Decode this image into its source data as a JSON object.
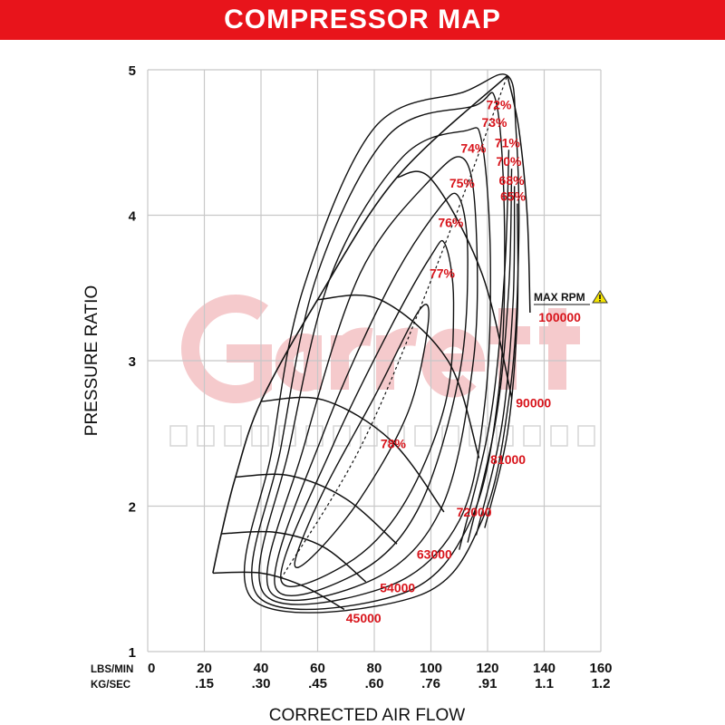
{
  "chart_data": {
    "type": "line",
    "title": "COMPRESSOR MAP",
    "xlabel": "CORRECTED AIR FLOW",
    "ylabel": "PRESSURE RATIO",
    "x_unit_labels": [
      "LBS/MIN",
      "KG/SEC"
    ],
    "xlim": [
      0,
      160
    ],
    "ylim": [
      1,
      5
    ],
    "grid": true,
    "x_ticks": [
      0,
      20,
      40,
      60,
      80,
      100,
      120,
      140,
      160
    ],
    "x_ticks_kgsec": [
      "",
      ".15",
      ".30",
      ".45",
      ".60",
      ".76",
      ".91",
      "1.1",
      "1.2"
    ],
    "y_ticks": [
      1,
      2,
      3,
      4,
      5
    ],
    "watermark": {
      "brand": "Garrett",
      "tagline": "ADVANCING MOTION",
      "color": "#f2b8bb"
    },
    "max_rpm_label": "MAX RPM",
    "max_rpm_icon": "warning-icon",
    "accent_color": "#d8141b",
    "surge_line": [
      [
        23,
        1.54
      ],
      [
        26,
        1.81
      ],
      [
        31,
        2.2
      ],
      [
        40,
        2.72
      ],
      [
        60,
        3.42
      ],
      [
        88,
        4.26
      ],
      [
        127,
        4.96
      ]
    ],
    "peak_efficiency_line": [
      [
        47,
        1.5
      ],
      [
        75,
        2.4
      ],
      [
        100,
        3.55
      ],
      [
        127,
        4.96
      ]
    ],
    "speed_lines": [
      {
        "name": "45000",
        "points": [
          [
            23,
            1.54
          ],
          [
            40,
            1.54
          ],
          [
            55,
            1.45
          ],
          [
            69.4,
            1.29
          ]
        ],
        "label_at": [
          70,
          1.23
        ]
      },
      {
        "name": "54000",
        "points": [
          [
            26,
            1.81
          ],
          [
            45,
            1.82
          ],
          [
            62,
            1.72
          ],
          [
            77,
            1.48
          ]
        ],
        "label_at": [
          82,
          1.44
        ]
      },
      {
        "name": "63000",
        "points": [
          [
            31,
            2.2
          ],
          [
            50,
            2.21
          ],
          [
            70,
            2.05
          ],
          [
            88,
            1.74
          ]
        ],
        "label_at": [
          95,
          1.67
        ]
      },
      {
        "name": "72000",
        "points": [
          [
            40,
            2.72
          ],
          [
            62,
            2.73
          ],
          [
            86,
            2.45
          ],
          [
            104.6,
            1.96
          ]
        ],
        "label_at": [
          109,
          1.96
        ]
      },
      {
        "name": "81000",
        "points": [
          [
            60,
            3.42
          ],
          [
            82,
            3.42
          ],
          [
            106,
            3.0
          ],
          [
            117,
            2.33
          ]
        ],
        "label_at": [
          121,
          2.32
        ]
      },
      {
        "name": "90000",
        "points": [
          [
            88,
            4.26
          ],
          [
            100,
            4.25
          ],
          [
            118,
            3.6
          ],
          [
            128.6,
            2.74
          ]
        ],
        "label_at": [
          130,
          2.71
        ]
      },
      {
        "name": "100000",
        "points": [
          [
            127,
            4.96
          ],
          [
            131,
            4.6
          ],
          [
            134,
            4.0
          ],
          [
            135,
            3.33
          ]
        ],
        "label_at": [
          138,
          3.3
        ]
      }
    ],
    "efficiency_islands": [
      {
        "name": "78%",
        "points": [
          [
            52,
            1.62
          ],
          [
            62,
            2.1
          ],
          [
            80,
            2.75
          ],
          [
            96,
            3.35
          ],
          [
            99,
            3.25
          ],
          [
            92,
            2.65
          ],
          [
            75,
            2.05
          ],
          [
            58,
            1.65
          ]
        ],
        "label_at": [
          86.7,
          2.43
        ]
      },
      {
        "name": "77%",
        "points": [
          [
            47,
            1.5
          ],
          [
            65,
            2.4
          ],
          [
            85,
            3.2
          ],
          [
            100,
            3.72
          ],
          [
            105,
            3.8
          ],
          [
            108,
            3.4
          ],
          [
            105,
            2.7
          ],
          [
            90,
            2.0
          ],
          [
            70,
            1.6
          ]
        ],
        "label_at": [
          104,
          3.6
        ]
      },
      {
        "name": "76%",
        "points": [
          [
            45,
            1.45
          ],
          [
            62,
            2.5
          ],
          [
            85,
            3.5
          ],
          [
            103,
            4.05
          ],
          [
            110,
            4.12
          ],
          [
            113,
            3.7
          ],
          [
            110,
            2.9
          ],
          [
            96,
            2.0
          ],
          [
            75,
            1.55
          ]
        ],
        "label_at": [
          107,
          3.95
        ]
      },
      {
        "name": "75%",
        "points": [
          [
            43,
            1.42
          ],
          [
            55,
            2.4
          ],
          [
            75,
            3.6
          ],
          [
            100,
            4.25
          ],
          [
            112,
            4.38
          ],
          [
            116,
            3.9
          ],
          [
            115,
            3.0
          ],
          [
            104,
            2.0
          ],
          [
            80,
            1.5
          ]
        ],
        "label_at": [
          111,
          4.22
        ]
      },
      {
        "name": "74%",
        "points": [
          [
            41,
            1.4
          ],
          [
            50,
            2.4
          ],
          [
            65,
            3.6
          ],
          [
            90,
            4.4
          ],
          [
            112,
            4.58
          ],
          [
            118,
            4.5
          ],
          [
            121,
            3.7
          ],
          [
            119,
            2.7
          ],
          [
            110,
            1.9
          ],
          [
            85,
            1.45
          ]
        ],
        "label_at": [
          115,
          4.46
        ]
      },
      {
        "name": "73%",
        "points": [
          [
            39,
            1.38
          ],
          [
            47,
            2.4
          ],
          [
            60,
            3.6
          ],
          [
            85,
            4.55
          ],
          [
            115,
            4.75
          ],
          [
            123,
            4.78
          ],
          [
            126,
            3.9
          ],
          [
            124,
            2.8
          ],
          [
            114,
            1.9
          ],
          [
            90,
            1.4
          ]
        ],
        "label_at": [
          122.4,
          4.64
        ]
      },
      {
        "name": "72%",
        "points": [
          [
            37,
            1.36
          ],
          [
            44,
            2.4
          ],
          [
            55,
            3.5
          ],
          [
            80,
            4.6
          ],
          [
            112,
            4.85
          ],
          [
            127,
            4.96
          ],
          [
            130,
            4.6
          ],
          [
            131,
            3.8
          ],
          [
            128,
            2.8
          ],
          [
            118,
            1.9
          ],
          [
            95,
            1.38
          ]
        ],
        "label_at": [
          124,
          4.76
        ]
      }
    ],
    "efficiency_contours_partial": [
      {
        "name": "71%",
        "points": [
          [
            127.5,
            4.45
          ],
          [
            126,
            3.6
          ],
          [
            121,
            2.6
          ],
          [
            110,
            1.7
          ]
        ],
        "label_at": [
          127,
          4.5
        ]
      },
      {
        "name": "70%",
        "points": [
          [
            128.5,
            4.32
          ],
          [
            127.5,
            3.5
          ],
          [
            123,
            2.6
          ],
          [
            113,
            1.75
          ]
        ],
        "label_at": [
          127.5,
          4.37
        ]
      },
      {
        "name": "68%",
        "points": [
          [
            129.5,
            4.2
          ],
          [
            129,
            3.4
          ],
          [
            125,
            2.55
          ],
          [
            116,
            1.8
          ]
        ],
        "label_at": [
          128.5,
          4.24
        ]
      },
      {
        "name": "65%",
        "points": [
          [
            130.5,
            4.08
          ],
          [
            130.5,
            3.3
          ],
          [
            127,
            2.5
          ],
          [
            119,
            1.85
          ]
        ],
        "label_at": [
          129,
          4.13
        ]
      }
    ]
  }
}
